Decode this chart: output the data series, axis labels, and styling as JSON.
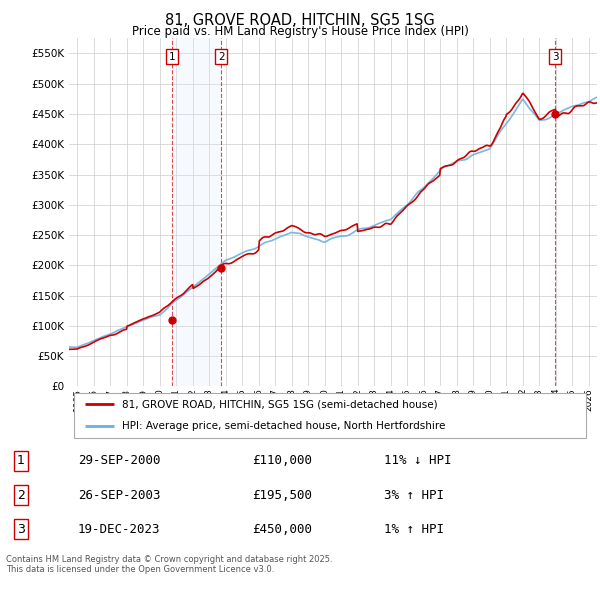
{
  "title": "81, GROVE ROAD, HITCHIN, SG5 1SG",
  "subtitle": "Price paid vs. HM Land Registry's House Price Index (HPI)",
  "ylim": [
    0,
    575000
  ],
  "yticks": [
    0,
    50000,
    100000,
    150000,
    200000,
    250000,
    300000,
    350000,
    400000,
    450000,
    500000,
    550000
  ],
  "ytick_labels": [
    "£0",
    "£50K",
    "£100K",
    "£150K",
    "£200K",
    "£250K",
    "£300K",
    "£350K",
    "£400K",
    "£450K",
    "£500K",
    "£550K"
  ],
  "hpi_color": "#6ab0de",
  "price_color": "#cc0000",
  "vline_color": "#cc0000",
  "vband_color": "#ddeeff",
  "background_color": "#ffffff",
  "grid_color": "#cccccc",
  "transactions": [
    {
      "label": "1",
      "date_x": 2000.75,
      "price": 110000,
      "pct": "11%",
      "dir": "↓",
      "date_str": "29-SEP-2000",
      "price_str": "£110,000"
    },
    {
      "label": "2",
      "date_x": 2003.73,
      "price": 195500,
      "pct": "3%",
      "dir": "↑",
      "date_str": "26-SEP-2003",
      "price_str": "£195,500"
    },
    {
      "label": "3",
      "date_x": 2023.96,
      "price": 450000,
      "pct": "1%",
      "dir": "↑",
      "date_str": "19-DEC-2023",
      "price_str": "£450,000"
    }
  ],
  "legend_line1": "81, GROVE ROAD, HITCHIN, SG5 1SG (semi-detached house)",
  "legend_line2": "HPI: Average price, semi-detached house, North Hertfordshire",
  "footnote": "Contains HM Land Registry data © Crown copyright and database right 2025.\nThis data is licensed under the Open Government Licence v3.0.",
  "xlim_left": 1994.5,
  "xlim_right": 2026.5,
  "x_years_start": 1995,
  "x_years_end": 2026
}
